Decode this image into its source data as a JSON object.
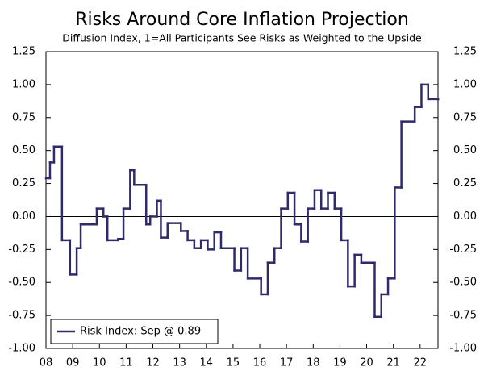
{
  "chart_data": {
    "type": "line",
    "step": "post",
    "title": "Risks Around Core Inflation Projection",
    "subtitle": "Diffusion Index, 1=All Participants See Risks as Weighted to the Upside",
    "x": [
      2008.0,
      2008.15,
      2008.3,
      2008.6,
      2008.9,
      2009.15,
      2009.3,
      2009.9,
      2010.15,
      2010.3,
      2010.7,
      2010.9,
      2011.15,
      2011.3,
      2011.75,
      2011.9,
      2012.15,
      2012.3,
      2012.55,
      2013.05,
      2013.3,
      2013.55,
      2013.8,
      2014.05,
      2014.3,
      2014.55,
      2015.05,
      2015.3,
      2015.55,
      2016.05,
      2016.3,
      2016.55,
      2016.8,
      2017.05,
      2017.3,
      2017.55,
      2017.8,
      2018.05,
      2018.3,
      2018.55,
      2018.8,
      2019.05,
      2019.3,
      2019.55,
      2019.8,
      2020.3,
      2020.55,
      2020.8,
      2021.05,
      2021.3,
      2021.8,
      2022.05,
      2022.3,
      2022.67
    ],
    "series": [
      {
        "name": "Risk Index: Sep @ 0.89",
        "color": "#2e2a6b",
        "values": [
          0.29,
          0.41,
          0.53,
          -0.18,
          -0.44,
          -0.24,
          -0.06,
          0.06,
          0,
          -0.18,
          -0.17,
          0.06,
          0.35,
          0.24,
          -0.06,
          0,
          0.12,
          -0.16,
          -0.05,
          -0.11,
          -0.18,
          -0.24,
          -0.18,
          -0.25,
          -0.12,
          -0.24,
          -0.41,
          -0.24,
          -0.47,
          -0.59,
          -0.35,
          -0.24,
          0.06,
          0.18,
          -0.06,
          -0.19,
          0.06,
          0.2,
          0.06,
          0.18,
          0.06,
          -0.18,
          -0.53,
          -0.29,
          -0.35,
          -0.76,
          -0.59,
          -0.47,
          0.22,
          0.72,
          0.83,
          1.0,
          0.89,
          0.89
        ]
      }
    ],
    "xlim": [
      2008,
      2022.67
    ],
    "xticks": [
      {
        "value": 2008,
        "label": "08"
      },
      {
        "value": 2009,
        "label": "09"
      },
      {
        "value": 2010,
        "label": "10"
      },
      {
        "value": 2011,
        "label": "11"
      },
      {
        "value": 2012,
        "label": "12"
      },
      {
        "value": 2013,
        "label": "13"
      },
      {
        "value": 2014,
        "label": "14"
      },
      {
        "value": 2015,
        "label": "15"
      },
      {
        "value": 2016,
        "label": "16"
      },
      {
        "value": 2017,
        "label": "17"
      },
      {
        "value": 2018,
        "label": "18"
      },
      {
        "value": 2019,
        "label": "19"
      },
      {
        "value": 2020,
        "label": "20"
      },
      {
        "value": 2021,
        "label": "21"
      },
      {
        "value": 2022,
        "label": "22"
      }
    ],
    "ylim": [
      -1,
      1.25
    ],
    "yticks": [
      1.25,
      {
        "value": 1,
        "label": "1.00"
      },
      0.75,
      {
        "value": 0.5,
        "label": "0.50"
      },
      0.25,
      {
        "value": 0,
        "label": "0.00"
      },
      -0.25,
      {
        "value": -0.5,
        "label": "-0.50"
      },
      -0.75,
      {
        "value": -1,
        "label": "-1.00"
      }
    ],
    "y2lim": [
      -1,
      1.25
    ],
    "y2ticks": [
      1.25,
      {
        "value": 1,
        "label": "1.00"
      },
      0.75,
      {
        "value": 0.5,
        "label": "0.50"
      },
      0.25,
      {
        "value": 0,
        "label": "0.00"
      },
      -0.25,
      {
        "value": -0.5,
        "label": "-0.50"
      },
      -0.75,
      {
        "value": -1,
        "label": "-1.00"
      }
    ],
    "legend": "lower left"
  }
}
